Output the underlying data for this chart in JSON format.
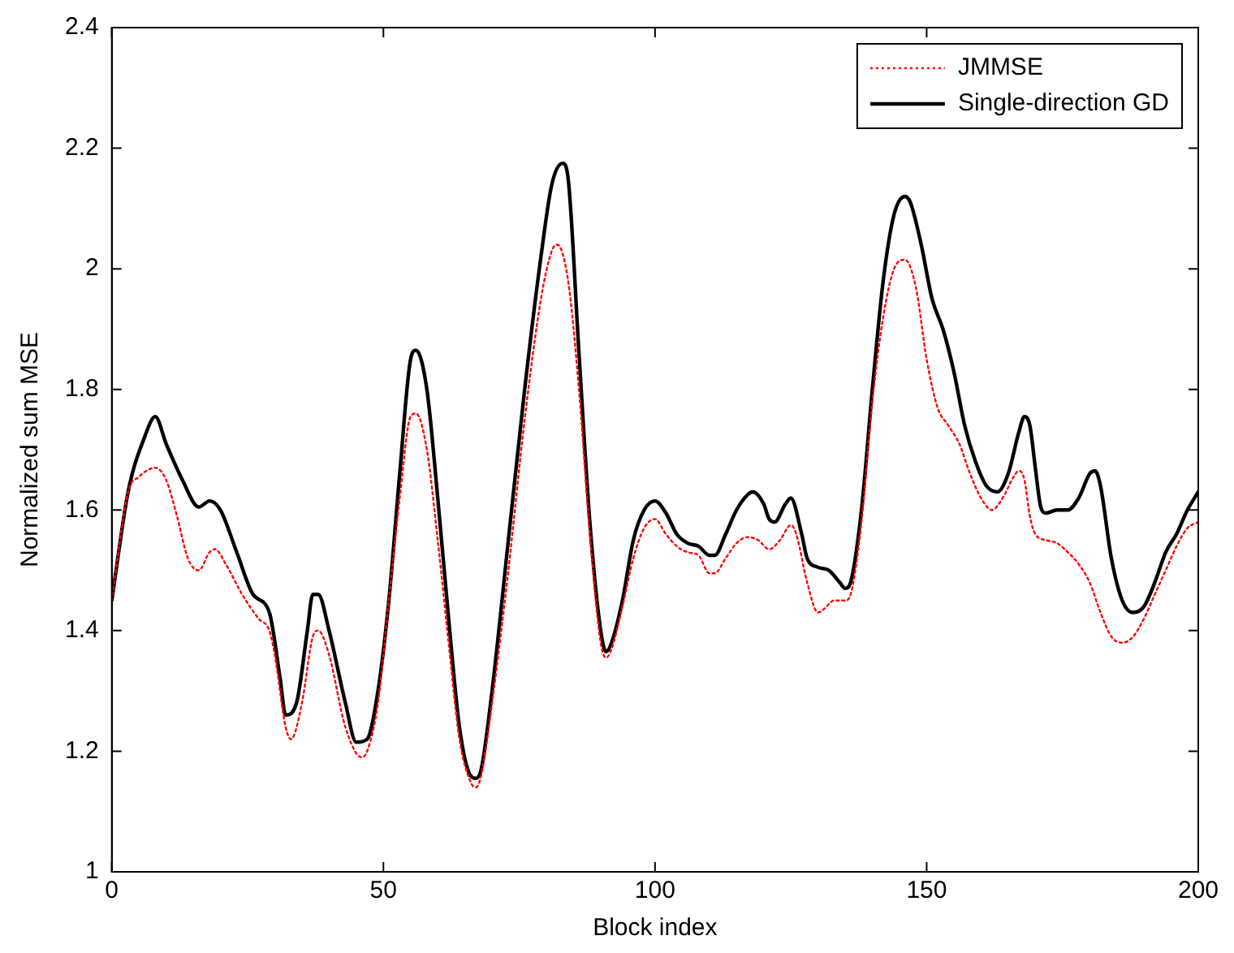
{
  "chart_data": {
    "type": "line",
    "xlabel": "Block index",
    "ylabel": "Normalized sum MSE",
    "xlim": [
      0,
      200
    ],
    "xticks": [
      0,
      50,
      100,
      150,
      200
    ],
    "ylim": [
      1,
      2.4
    ],
    "yticks": [
      1,
      1.2,
      1.4,
      1.6,
      1.8,
      2,
      2.2,
      2.4
    ],
    "legend": "top right",
    "grid": false,
    "marker": "none",
    "series": [
      {
        "name": "JMMSE",
        "color": "#ff0000",
        "line_style": "dotted",
        "x": [
          0,
          3,
          5,
          8,
          10,
          12,
          14,
          16,
          18,
          19,
          21,
          24,
          27,
          29,
          30,
          32,
          33,
          35,
          37,
          38,
          40,
          43,
          46,
          47,
          49,
          51,
          53,
          55,
          56,
          58,
          60,
          62,
          64,
          66,
          67,
          68,
          70,
          73,
          76,
          79,
          81,
          82,
          84,
          86,
          88,
          90,
          91,
          92,
          94,
          96,
          98,
          100,
          102,
          104,
          106,
          108,
          110,
          111,
          113,
          115,
          117,
          119,
          121,
          123,
          125,
          126,
          128,
          130,
          131,
          133,
          135,
          136,
          138,
          140,
          142,
          144,
          146,
          148,
          150,
          152,
          154,
          156,
          158,
          160,
          162,
          164,
          166,
          167,
          168,
          169,
          170,
          172,
          174,
          176,
          178,
          180,
          182,
          184,
          186,
          188,
          190,
          192,
          194,
          196,
          198,
          200
        ],
        "values": [
          1.45,
          1.63,
          1.655,
          1.67,
          1.65,
          1.59,
          1.52,
          1.5,
          1.53,
          1.535,
          1.51,
          1.46,
          1.42,
          1.4,
          1.36,
          1.24,
          1.22,
          1.28,
          1.39,
          1.4,
          1.36,
          1.24,
          1.19,
          1.2,
          1.28,
          1.45,
          1.62,
          1.755,
          1.76,
          1.7,
          1.55,
          1.38,
          1.22,
          1.15,
          1.14,
          1.16,
          1.28,
          1.5,
          1.75,
          1.95,
          2.03,
          2.04,
          1.98,
          1.8,
          1.56,
          1.38,
          1.355,
          1.37,
          1.44,
          1.52,
          1.57,
          1.585,
          1.56,
          1.54,
          1.53,
          1.525,
          1.495,
          1.495,
          1.52,
          1.545,
          1.555,
          1.55,
          1.535,
          1.55,
          1.575,
          1.56,
          1.48,
          1.43,
          1.435,
          1.45,
          1.45,
          1.46,
          1.58,
          1.78,
          1.92,
          2.0,
          2.015,
          1.97,
          1.85,
          1.77,
          1.74,
          1.71,
          1.66,
          1.62,
          1.6,
          1.62,
          1.655,
          1.665,
          1.65,
          1.59,
          1.56,
          1.55,
          1.545,
          1.53,
          1.51,
          1.48,
          1.43,
          1.39,
          1.38,
          1.39,
          1.42,
          1.46,
          1.5,
          1.54,
          1.57,
          1.58
        ]
      },
      {
        "name": "Single-direction GD",
        "color": "#000000",
        "line_style": "solid",
        "x": [
          0,
          3,
          6,
          8,
          10,
          13,
          16,
          18,
          20,
          23,
          26,
          29,
          31,
          32,
          34,
          36,
          37,
          38,
          40,
          43,
          45,
          47,
          49,
          51,
          53,
          55,
          56,
          58,
          60,
          62,
          64,
          66,
          67,
          68,
          70,
          73,
          76,
          79,
          81,
          83,
          84,
          86,
          88,
          90,
          91,
          92,
          94,
          96,
          98,
          100,
          102,
          104,
          106,
          108,
          110,
          111,
          113,
          115,
          117,
          118,
          120,
          121,
          122,
          124,
          125,
          127,
          128,
          130,
          132,
          134,
          135,
          136,
          138,
          140,
          142,
          144,
          146,
          147,
          149,
          151,
          153,
          155,
          157,
          159,
          161,
          163,
          165,
          167,
          168,
          169,
          170,
          171,
          172,
          174,
          176,
          178,
          180,
          181,
          182,
          184,
          186,
          188,
          190,
          192,
          194,
          196,
          198,
          200
        ],
        "values": [
          1.45,
          1.63,
          1.72,
          1.755,
          1.71,
          1.65,
          1.605,
          1.615,
          1.6,
          1.53,
          1.46,
          1.43,
          1.32,
          1.26,
          1.28,
          1.4,
          1.46,
          1.46,
          1.4,
          1.28,
          1.215,
          1.22,
          1.3,
          1.45,
          1.66,
          1.85,
          1.865,
          1.8,
          1.62,
          1.42,
          1.24,
          1.16,
          1.155,
          1.17,
          1.3,
          1.55,
          1.8,
          2.02,
          2.14,
          2.175,
          2.15,
          1.86,
          1.58,
          1.4,
          1.365,
          1.38,
          1.45,
          1.55,
          1.6,
          1.615,
          1.595,
          1.56,
          1.545,
          1.54,
          1.525,
          1.525,
          1.56,
          1.6,
          1.625,
          1.63,
          1.61,
          1.585,
          1.58,
          1.61,
          1.62,
          1.56,
          1.52,
          1.505,
          1.5,
          1.48,
          1.47,
          1.48,
          1.6,
          1.8,
          1.98,
          2.09,
          2.12,
          2.11,
          2.04,
          1.95,
          1.9,
          1.83,
          1.74,
          1.68,
          1.64,
          1.63,
          1.66,
          1.73,
          1.755,
          1.74,
          1.67,
          1.605,
          1.595,
          1.6,
          1.6,
          1.62,
          1.66,
          1.665,
          1.64,
          1.52,
          1.45,
          1.43,
          1.44,
          1.48,
          1.53,
          1.56,
          1.6,
          1.63
        ]
      }
    ]
  }
}
